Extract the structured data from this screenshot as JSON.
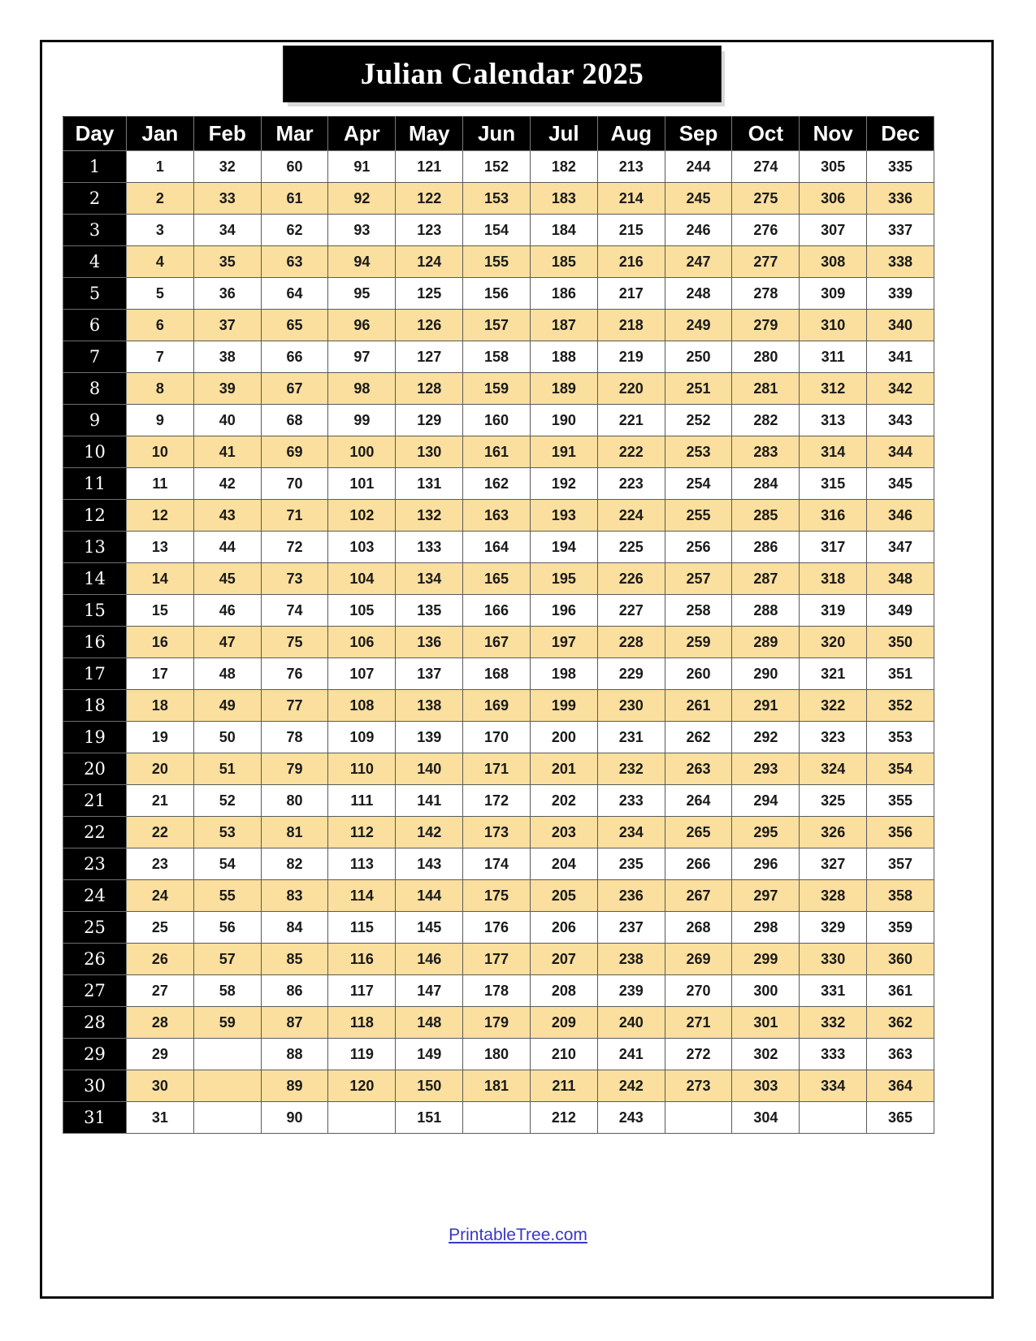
{
  "page": {
    "title": "Julian Calendar 2025",
    "footer_link": "PrintableTree.com"
  },
  "colors": {
    "header_bg": "#000000",
    "header_text": "#ffffff",
    "stripe_bg": "#fbdf9e",
    "cell_text": "#1a1a1a",
    "link": "#3838c8"
  },
  "table": {
    "day_header": "Day",
    "months": [
      "Jan",
      "Feb",
      "Mar",
      "Apr",
      "May",
      "Jun",
      "Jul",
      "Aug",
      "Sep",
      "Oct",
      "Nov",
      "Dec"
    ],
    "rows": [
      {
        "day": "1",
        "values": [
          "1",
          "32",
          "60",
          "91",
          "121",
          "152",
          "182",
          "213",
          "244",
          "274",
          "305",
          "335"
        ]
      },
      {
        "day": "2",
        "values": [
          "2",
          "33",
          "61",
          "92",
          "122",
          "153",
          "183",
          "214",
          "245",
          "275",
          "306",
          "336"
        ]
      },
      {
        "day": "3",
        "values": [
          "3",
          "34",
          "62",
          "93",
          "123",
          "154",
          "184",
          "215",
          "246",
          "276",
          "307",
          "337"
        ]
      },
      {
        "day": "4",
        "values": [
          "4",
          "35",
          "63",
          "94",
          "124",
          "155",
          "185",
          "216",
          "247",
          "277",
          "308",
          "338"
        ]
      },
      {
        "day": "5",
        "values": [
          "5",
          "36",
          "64",
          "95",
          "125",
          "156",
          "186",
          "217",
          "248",
          "278",
          "309",
          "339"
        ]
      },
      {
        "day": "6",
        "values": [
          "6",
          "37",
          "65",
          "96",
          "126",
          "157",
          "187",
          "218",
          "249",
          "279",
          "310",
          "340"
        ]
      },
      {
        "day": "7",
        "values": [
          "7",
          "38",
          "66",
          "97",
          "127",
          "158",
          "188",
          "219",
          "250",
          "280",
          "311",
          "341"
        ]
      },
      {
        "day": "8",
        "values": [
          "8",
          "39",
          "67",
          "98",
          "128",
          "159",
          "189",
          "220",
          "251",
          "281",
          "312",
          "342"
        ]
      },
      {
        "day": "9",
        "values": [
          "9",
          "40",
          "68",
          "99",
          "129",
          "160",
          "190",
          "221",
          "252",
          "282",
          "313",
          "343"
        ]
      },
      {
        "day": "10",
        "values": [
          "10",
          "41",
          "69",
          "100",
          "130",
          "161",
          "191",
          "222",
          "253",
          "283",
          "314",
          "344"
        ]
      },
      {
        "day": "11",
        "values": [
          "11",
          "42",
          "70",
          "101",
          "131",
          "162",
          "192",
          "223",
          "254",
          "284",
          "315",
          "345"
        ]
      },
      {
        "day": "12",
        "values": [
          "12",
          "43",
          "71",
          "102",
          "132",
          "163",
          "193",
          "224",
          "255",
          "285",
          "316",
          "346"
        ]
      },
      {
        "day": "13",
        "values": [
          "13",
          "44",
          "72",
          "103",
          "133",
          "164",
          "194",
          "225",
          "256",
          "286",
          "317",
          "347"
        ]
      },
      {
        "day": "14",
        "values": [
          "14",
          "45",
          "73",
          "104",
          "134",
          "165",
          "195",
          "226",
          "257",
          "287",
          "318",
          "348"
        ]
      },
      {
        "day": "15",
        "values": [
          "15",
          "46",
          "74",
          "105",
          "135",
          "166",
          "196",
          "227",
          "258",
          "288",
          "319",
          "349"
        ]
      },
      {
        "day": "16",
        "values": [
          "16",
          "47",
          "75",
          "106",
          "136",
          "167",
          "197",
          "228",
          "259",
          "289",
          "320",
          "350"
        ]
      },
      {
        "day": "17",
        "values": [
          "17",
          "48",
          "76",
          "107",
          "137",
          "168",
          "198",
          "229",
          "260",
          "290",
          "321",
          "351"
        ]
      },
      {
        "day": "18",
        "values": [
          "18",
          "49",
          "77",
          "108",
          "138",
          "169",
          "199",
          "230",
          "261",
          "291",
          "322",
          "352"
        ]
      },
      {
        "day": "19",
        "values": [
          "19",
          "50",
          "78",
          "109",
          "139",
          "170",
          "200",
          "231",
          "262",
          "292",
          "323",
          "353"
        ]
      },
      {
        "day": "20",
        "values": [
          "20",
          "51",
          "79",
          "110",
          "140",
          "171",
          "201",
          "232",
          "263",
          "293",
          "324",
          "354"
        ]
      },
      {
        "day": "21",
        "values": [
          "21",
          "52",
          "80",
          "111",
          "141",
          "172",
          "202",
          "233",
          "264",
          "294",
          "325",
          "355"
        ]
      },
      {
        "day": "22",
        "values": [
          "22",
          "53",
          "81",
          "112",
          "142",
          "173",
          "203",
          "234",
          "265",
          "295",
          "326",
          "356"
        ]
      },
      {
        "day": "23",
        "values": [
          "23",
          "54",
          "82",
          "113",
          "143",
          "174",
          "204",
          "235",
          "266",
          "296",
          "327",
          "357"
        ]
      },
      {
        "day": "24",
        "values": [
          "24",
          "55",
          "83",
          "114",
          "144",
          "175",
          "205",
          "236",
          "267",
          "297",
          "328",
          "358"
        ]
      },
      {
        "day": "25",
        "values": [
          "25",
          "56",
          "84",
          "115",
          "145",
          "176",
          "206",
          "237",
          "268",
          "298",
          "329",
          "359"
        ]
      },
      {
        "day": "26",
        "values": [
          "26",
          "57",
          "85",
          "116",
          "146",
          "177",
          "207",
          "238",
          "269",
          "299",
          "330",
          "360"
        ]
      },
      {
        "day": "27",
        "values": [
          "27",
          "58",
          "86",
          "117",
          "147",
          "178",
          "208",
          "239",
          "270",
          "300",
          "331",
          "361"
        ]
      },
      {
        "day": "28",
        "values": [
          "28",
          "59",
          "87",
          "118",
          "148",
          "179",
          "209",
          "240",
          "271",
          "301",
          "332",
          "362"
        ]
      },
      {
        "day": "29",
        "values": [
          "29",
          "",
          "88",
          "119",
          "149",
          "180",
          "210",
          "241",
          "272",
          "302",
          "333",
          "363"
        ]
      },
      {
        "day": "30",
        "values": [
          "30",
          "",
          "89",
          "120",
          "150",
          "181",
          "211",
          "242",
          "273",
          "303",
          "334",
          "364"
        ]
      },
      {
        "day": "31",
        "values": [
          "31",
          "",
          "90",
          "",
          "151",
          "",
          "212",
          "243",
          "",
          "304",
          "",
          "365"
        ]
      }
    ]
  }
}
